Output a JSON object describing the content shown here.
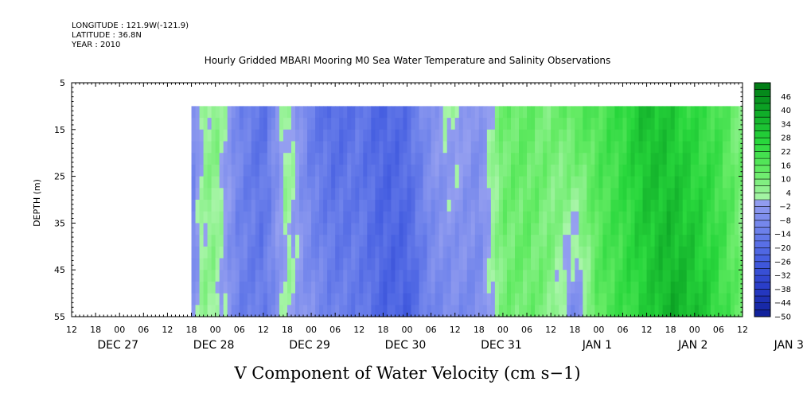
{
  "header": {
    "longitude": "LONGITUDE : 121.9W(-121.9)",
    "latitude": "LATITUDE : 36.8N",
    "year": "YEAR : 2010"
  },
  "chart_data": {
    "type": "heatmap",
    "title": "Hourly Gridded MBARI Mooring M0 Sea Water Temperature and Salinity Observations",
    "xlabel": "V Component of Water Velocity (cm s−1)",
    "ylabel": "DEPTH (m)",
    "x_range_hours": [
      -12,
      156
    ],
    "x_origin_label": "DEC 27 12",
    "y_range": [
      5,
      55
    ],
    "y_reversed": true,
    "y_ticks": [
      5,
      15,
      25,
      35,
      45,
      55
    ],
    "x_tick_labels": [
      "12",
      "18",
      "00",
      "06",
      "12",
      "18",
      "00",
      "06",
      "12",
      "18",
      "00",
      "06",
      "12",
      "18",
      "00",
      "06",
      "12",
      "18",
      "00",
      "06",
      "12",
      "18",
      "00",
      "06",
      "12",
      "18",
      "00",
      "06",
      "12"
    ],
    "day_labels": [
      "DEC 27",
      "DEC 28",
      "DEC 29",
      "DEC 30",
      "DEC 31",
      "JAN  1",
      "JAN  2",
      "JAN  3"
    ],
    "data_depth_range": [
      10,
      55
    ],
    "data_start_hour": 18,
    "colorbar": {
      "ticks": [
        46,
        40,
        34,
        28,
        22,
        16,
        10,
        4,
        -2,
        -8,
        -14,
        -20,
        -26,
        -32,
        -38,
        -44,
        -50
      ],
      "min": -50,
      "max": 52,
      "step": 3
    },
    "time_series": {
      "hours": [
        18,
        21,
        24,
        30,
        36,
        42,
        48,
        54,
        60,
        66,
        72,
        78,
        84,
        90,
        96,
        102,
        108,
        114,
        120,
        126,
        132,
        138,
        144,
        150,
        156
      ],
      "surface_velocity": [
        -12,
        4,
        8,
        -10,
        -18,
        6,
        -14,
        -20,
        -16,
        -22,
        -18,
        -4,
        2,
        -6,
        12,
        14,
        10,
        16,
        18,
        24,
        34,
        30,
        24,
        20,
        8
      ],
      "bottom_velocity": [
        -8,
        6,
        4,
        -12,
        -14,
        2,
        -6,
        -12,
        -14,
        -22,
        -24,
        -10,
        -8,
        -8,
        10,
        12,
        8,
        -10,
        16,
        22,
        28,
        38,
        34,
        24,
        12
      ]
    }
  }
}
